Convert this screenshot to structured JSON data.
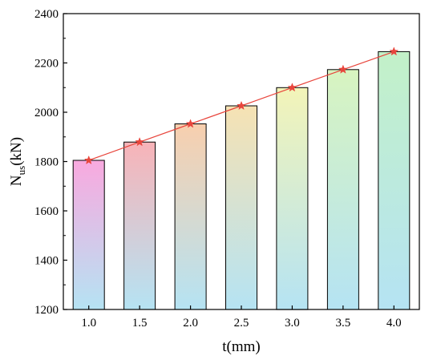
{
  "chart_data": {
    "type": "bar",
    "categories": [
      "1.0",
      "1.5",
      "2.0",
      "2.5",
      "3.0",
      "3.5",
      "4.0"
    ],
    "values": [
      1805,
      1879,
      1953,
      2026,
      2100,
      2173,
      2246
    ],
    "ylim": [
      1200,
      2400
    ],
    "yticks": [
      1200,
      1400,
      1600,
      1800,
      2000,
      2200,
      2400
    ],
    "ytick_labels": [
      "1200",
      "1400",
      "1600",
      "1800",
      "2000",
      "2200",
      "2400"
    ],
    "xlabel": "t(mm)",
    "ylabel": {
      "base": "N",
      "subscript": "us",
      "suffix": "(kN)"
    },
    "bar_colors": [
      "#f9a9df",
      "#f8b3b8",
      "#f8cfae",
      "#f6e2b3",
      "#f3f4b8",
      "#d8f4c0",
      "#c3f1c8"
    ],
    "bar_bottom_color": "#b5e3f3",
    "overlay_line": {
      "color": "#e8453c",
      "marker": "star",
      "values": [
        1805,
        1879,
        1953,
        2026,
        2100,
        2173,
        2246
      ]
    },
    "grid": false,
    "legend": "none"
  }
}
